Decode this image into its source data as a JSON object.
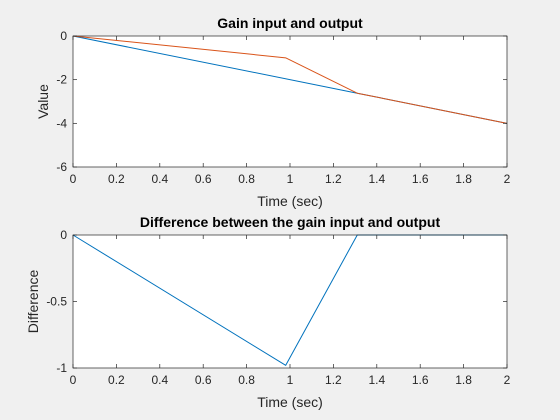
{
  "chart_data": [
    {
      "type": "line",
      "title": "Gain input and output",
      "xlabel": "Time (sec)",
      "ylabel": "Value",
      "xlim": [
        0,
        2
      ],
      "ylim": [
        -6,
        0
      ],
      "xticks": [
        0,
        0.2,
        0.4,
        0.6,
        0.8,
        1,
        1.2,
        1.4,
        1.6,
        1.8,
        2
      ],
      "xtick_labels": [
        "0",
        "0.2",
        "0.4",
        "0.6",
        "0.8",
        "1",
        "1.2",
        "1.4",
        "1.6",
        "1.8",
        "2"
      ],
      "yticks": [
        0,
        -2,
        -4,
        -6
      ],
      "ytick_labels": [
        "0",
        "-2",
        "-4",
        "-6"
      ],
      "grid": false,
      "series": [
        {
          "color": "#0072bd",
          "x": [
            0,
            1.31,
            2
          ],
          "y": [
            0,
            -2.62,
            -4
          ]
        },
        {
          "color": "#d95319",
          "x": [
            0,
            0.98,
            1.31,
            2
          ],
          "y": [
            0,
            -1,
            -2.62,
            -4
          ]
        }
      ]
    },
    {
      "type": "line",
      "title": "Difference between the gain input and output",
      "xlabel": "Time (sec)",
      "ylabel": "Difference",
      "xlim": [
        0,
        2
      ],
      "ylim": [
        -1,
        0
      ],
      "xticks": [
        0,
        0.2,
        0.4,
        0.6,
        0.8,
        1,
        1.2,
        1.4,
        1.6,
        1.8,
        2
      ],
      "xtick_labels": [
        "0",
        "0.2",
        "0.4",
        "0.6",
        "0.8",
        "1",
        "1.2",
        "1.4",
        "1.6",
        "1.8",
        "2"
      ],
      "yticks": [
        0,
        -0.5,
        -1
      ],
      "ytick_labels": [
        "0",
        "-0.5",
        "-1"
      ],
      "grid": false,
      "series": [
        {
          "color": "#0072bd",
          "x": [
            0,
            0.98,
            1.31,
            2
          ],
          "y": [
            0,
            -0.98,
            0,
            0
          ]
        }
      ]
    }
  ]
}
